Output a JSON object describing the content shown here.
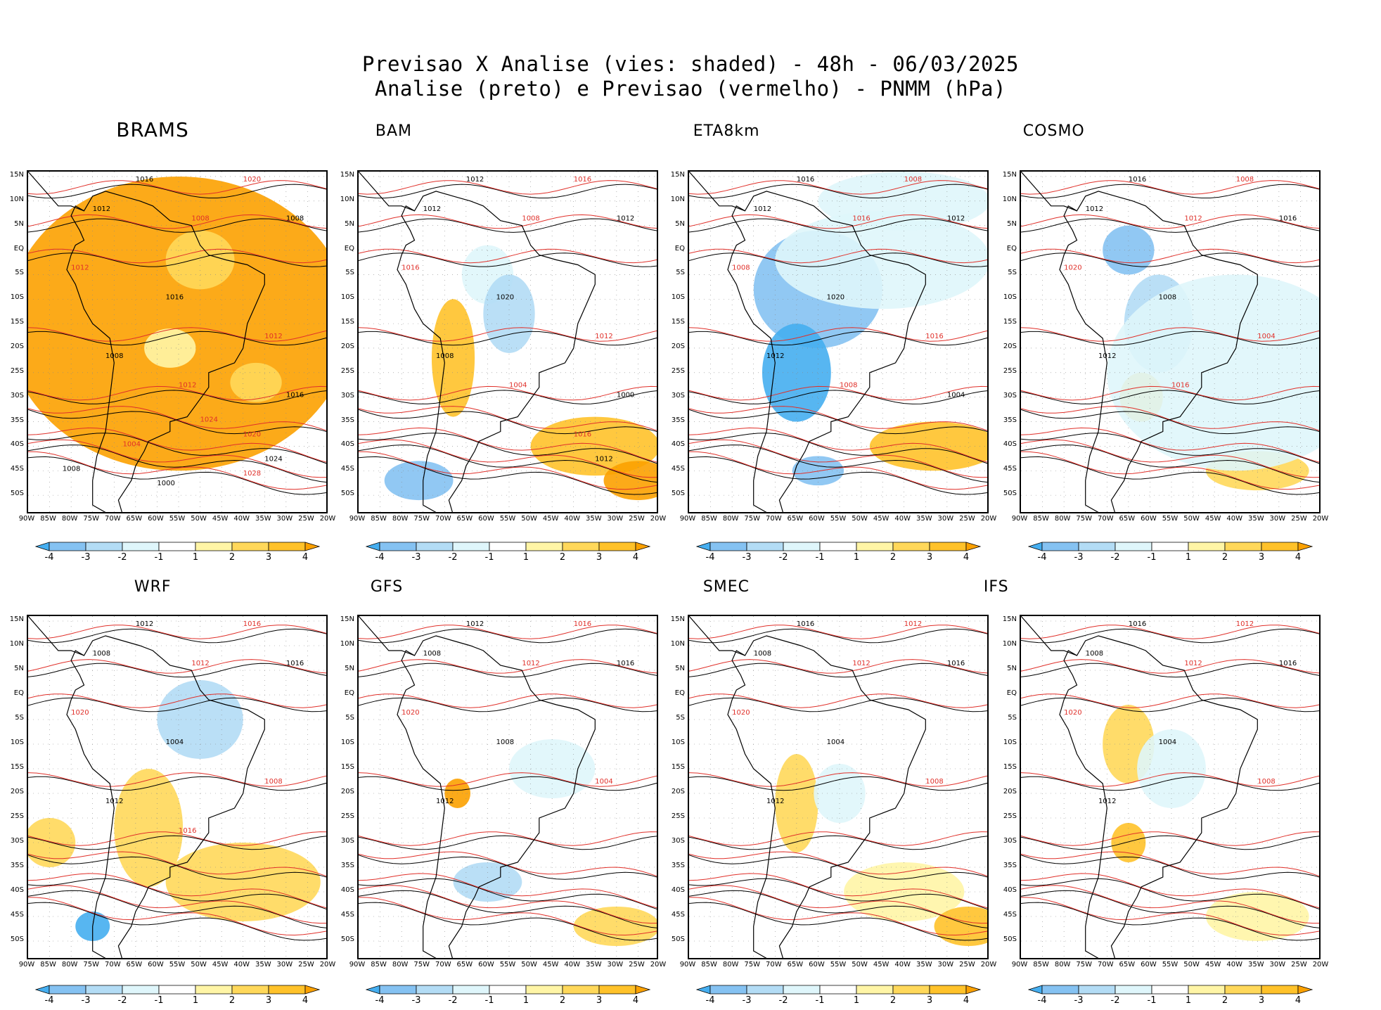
{
  "header": {
    "line1": "Previsao X Analise (vies: shaded) - 48h - 06/03/2025",
    "line2": "Analise (preto) e Previsao (vermelho) - PNMM (hPa)"
  },
  "axes": {
    "lat_labels": [
      "15N",
      "10N",
      "5N",
      "EQ",
      "5S",
      "10S",
      "15S",
      "20S",
      "25S",
      "30S",
      "35S",
      "40S",
      "45S",
      "50S"
    ],
    "lon_labels": [
      "90W",
      "85W",
      "80W",
      "75W",
      "70W",
      "65W",
      "60W",
      "55W",
      "50W",
      "45W",
      "40W",
      "35W",
      "30W",
      "25W",
      "20W"
    ]
  },
  "colorbar": {
    "labels": [
      "-4",
      "-3",
      "-2",
      "-1",
      "1",
      "2",
      "3",
      "4"
    ],
    "colors": [
      "#45aef0",
      "#85c2f2",
      "#b3dcf5",
      "#dff6fb",
      "#ffffff",
      "#fff5a6",
      "#ffd85a",
      "#ffc22a",
      "#fca100"
    ]
  },
  "colors": {
    "analysis": "#000000",
    "forecast": "#e0302a",
    "coast": "#000000"
  },
  "panels": [
    {
      "id": "brams",
      "title": "BRAMS",
      "isobar_labels": [
        "1016",
        "1020",
        "1012",
        "1008",
        "1008",
        "1012",
        "1016",
        "1012",
        "1008",
        "1012",
        "1016",
        "1020",
        "1024",
        "1028",
        "1008",
        "1004",
        "1000",
        "1024"
      ]
    },
    {
      "id": "bam",
      "title": "BAM",
      "isobar_labels": [
        "1012",
        "1016",
        "1012",
        "1008",
        "1012",
        "1016",
        "1020",
        "1012",
        "1008",
        "1004",
        "1000",
        "1016",
        "1012"
      ]
    },
    {
      "id": "eta8km",
      "title": "ETA8km",
      "isobar_labels": [
        "1016",
        "1008",
        "1012",
        "1016",
        "1012",
        "1008",
        "1020",
        "1016",
        "1012",
        "1008",
        "1004"
      ]
    },
    {
      "id": "cosmo",
      "title": "COSMO",
      "isobar_labels": [
        "1016",
        "1008",
        "1012",
        "1012",
        "1016",
        "1020",
        "1008",
        "1004",
        "1012",
        "1016"
      ]
    },
    {
      "id": "wrf",
      "title": "WRF",
      "isobar_labels": [
        "1012",
        "1016",
        "1008",
        "1012",
        "1016",
        "1020",
        "1004",
        "1008",
        "1012",
        "1016"
      ]
    },
    {
      "id": "gfs",
      "title": "GFS",
      "isobar_labels": [
        "1012",
        "1016",
        "1008",
        "1012",
        "1016",
        "1020",
        "1008",
        "1004",
        "1012"
      ]
    },
    {
      "id": "smec",
      "title": "SMEC",
      "isobar_labels": [
        "1016",
        "1012",
        "1008",
        "1012",
        "1016",
        "1020",
        "1004",
        "1008",
        "1012"
      ]
    },
    {
      "id": "ifs",
      "title": "IFS",
      "isobar_labels": [
        "1016",
        "1012",
        "1008",
        "1012",
        "1016",
        "1020",
        "1004",
        "1008",
        "1012"
      ]
    }
  ]
}
